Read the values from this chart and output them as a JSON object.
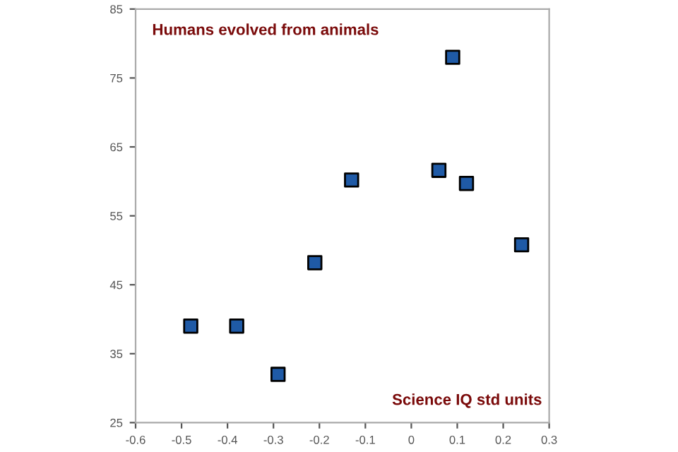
{
  "chart_data": {
    "type": "scatter",
    "marker": "square",
    "x": [
      -0.48,
      -0.38,
      -0.29,
      -0.21,
      -0.13,
      0.06,
      0.09,
      0.12,
      0.24
    ],
    "series": [
      {
        "color": "#1f5aa6",
        "values": [
          39.0,
          39.0,
          32.0,
          48.2,
          60.2,
          61.6,
          78.0,
          59.7,
          50.8
        ]
      }
    ],
    "xlim": [
      -0.6,
      0.3
    ],
    "xticks": [
      -0.6,
      -0.5,
      -0.4,
      -0.3,
      -0.2,
      -0.1,
      0,
      0.1,
      0.2,
      0.3
    ],
    "ylim": [
      25,
      85
    ],
    "yticks": [
      25,
      35,
      45,
      55,
      65,
      75,
      85
    ],
    "annotations": [
      "Humans evolved from animals",
      "Science IQ std units"
    ]
  }
}
